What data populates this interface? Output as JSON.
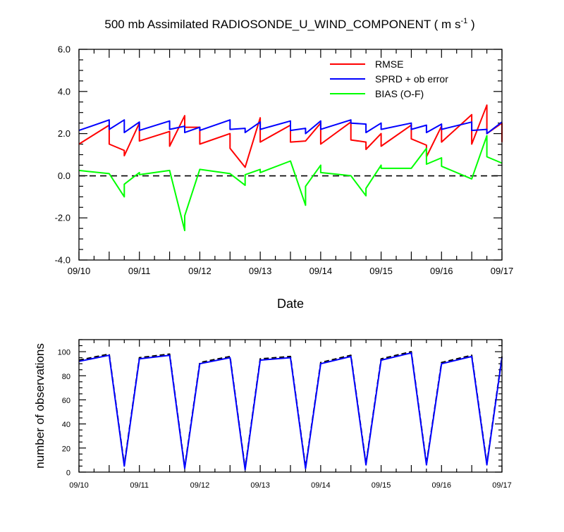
{
  "chart_data": [
    {
      "type": "line",
      "title_main": "500 mb Assimilated RADIOSONDE_U_WIND_COMPONENT ( m s",
      "title_sup": "-1",
      "title_tail": " )",
      "xlabel": "Date",
      "ylabel": "",
      "xlim": [
        0,
        7
      ],
      "ylim": [
        -4,
        6
      ],
      "x_ticks": [
        {
          "x": 0,
          "label": "09/10"
        },
        {
          "x": 1,
          "label": "09/11"
        },
        {
          "x": 2,
          "label": "09/12"
        },
        {
          "x": 3,
          "label": "09/13"
        },
        {
          "x": 4,
          "label": "09/14"
        },
        {
          "x": 5,
          "label": "09/15"
        },
        {
          "x": 6,
          "label": "09/16"
        },
        {
          "x": 7,
          "label": "09/17"
        }
      ],
      "y_ticks": [
        {
          "y": -4,
          "label": "-4.0"
        },
        {
          "y": -2,
          "label": "-2.0"
        },
        {
          "y": 0,
          "label": "0.0"
        },
        {
          "y": 2,
          "label": "2.0"
        },
        {
          "y": 4,
          "label": "4.0"
        },
        {
          "y": 6,
          "label": "6.0"
        }
      ],
      "reference_line": {
        "y": 0,
        "style": "dashed"
      },
      "legend_position": "top-right",
      "series": [
        {
          "name": "RMSE",
          "color": "#ff0000",
          "points": [
            [
              0,
              1.5
            ],
            [
              0.5,
              2.4
            ],
            [
              0.5,
              1.5
            ],
            [
              0.75,
              1.2
            ],
            [
              0.75,
              0.95
            ],
            [
              1,
              2.5
            ],
            [
              1,
              1.65
            ],
            [
              1.5,
              2.1
            ],
            [
              1.5,
              1.4
            ],
            [
              1.75,
              2.85
            ],
            [
              1.75,
              2.3
            ],
            [
              2,
              2.3
            ],
            [
              2,
              1.5
            ],
            [
              2.5,
              2.0
            ],
            [
              2.5,
              1.3
            ],
            [
              2.75,
              0.4
            ],
            [
              3,
              2.75
            ],
            [
              3,
              1.6
            ],
            [
              3.5,
              2.4
            ],
            [
              3.5,
              1.6
            ],
            [
              3.75,
              1.65
            ],
            [
              4,
              2.5
            ],
            [
              4,
              1.5
            ],
            [
              4.5,
              2.55
            ],
            [
              4.5,
              1.7
            ],
            [
              4.75,
              1.6
            ],
            [
              4.75,
              1.25
            ],
            [
              5,
              2.0
            ],
            [
              5,
              1.4
            ],
            [
              5.5,
              2.4
            ],
            [
              5.5,
              1.75
            ],
            [
              5.75,
              1.45
            ],
            [
              5.75,
              0.9
            ],
            [
              6,
              2.35
            ],
            [
              6,
              1.6
            ],
            [
              6.5,
              2.9
            ],
            [
              6.5,
              1.5
            ],
            [
              6.75,
              3.35
            ],
            [
              6.75,
              2.0
            ],
            [
              7,
              2.5
            ],
            [
              7,
              1.6
            ]
          ]
        },
        {
          "name": "SPRD + ob error",
          "color": "#0000ff",
          "points": [
            [
              0,
              2.15
            ],
            [
              0.5,
              2.65
            ],
            [
              0.5,
              2.2
            ],
            [
              0.75,
              2.65
            ],
            [
              0.75,
              2.05
            ],
            [
              1,
              2.55
            ],
            [
              1,
              2.15
            ],
            [
              1.5,
              2.6
            ],
            [
              1.5,
              2.2
            ],
            [
              1.75,
              2.35
            ],
            [
              1.75,
              2.05
            ],
            [
              2,
              2.3
            ],
            [
              2,
              2.15
            ],
            [
              2.5,
              2.65
            ],
            [
              2.5,
              2.2
            ],
            [
              2.75,
              2.25
            ],
            [
              2.75,
              2.05
            ],
            [
              3,
              2.55
            ],
            [
              3,
              2.2
            ],
            [
              3.5,
              2.6
            ],
            [
              3.5,
              2.15
            ],
            [
              3.75,
              2.25
            ],
            [
              3.75,
              2.0
            ],
            [
              4,
              2.6
            ],
            [
              4,
              2.2
            ],
            [
              4.5,
              2.65
            ],
            [
              4.5,
              2.5
            ],
            [
              4.75,
              2.45
            ],
            [
              4.75,
              2.05
            ],
            [
              5,
              2.5
            ],
            [
              5,
              2.2
            ],
            [
              5.5,
              2.5
            ],
            [
              5.5,
              2.2
            ],
            [
              5.75,
              2.4
            ],
            [
              5.75,
              2.05
            ],
            [
              6,
              2.45
            ],
            [
              6,
              2.2
            ],
            [
              6.5,
              2.55
            ],
            [
              6.5,
              2.15
            ],
            [
              6.75,
              2.2
            ],
            [
              6.75,
              2.0
            ],
            [
              7,
              2.55
            ]
          ]
        },
        {
          "name": "BIAS (O-F)",
          "color": "#00ff00",
          "points": [
            [
              0,
              0.25
            ],
            [
              0.5,
              0.1
            ],
            [
              0.75,
              -1.0
            ],
            [
              0.75,
              -0.4
            ],
            [
              1,
              0.15
            ],
            [
              1,
              0.05
            ],
            [
              1.5,
              0.25
            ],
            [
              1.75,
              -2.6
            ],
            [
              1.75,
              -1.9
            ],
            [
              2,
              0.3
            ],
            [
              2.5,
              0.1
            ],
            [
              2.75,
              -0.45
            ],
            [
              2.75,
              0.05
            ],
            [
              3,
              0.3
            ],
            [
              3,
              0.15
            ],
            [
              3.5,
              0.7
            ],
            [
              3.75,
              -1.4
            ],
            [
              3.75,
              -0.5
            ],
            [
              4,
              0.5
            ],
            [
              4,
              0.15
            ],
            [
              4.5,
              0.0
            ],
            [
              4.75,
              -0.95
            ],
            [
              4.75,
              -0.6
            ],
            [
              5,
              0.5
            ],
            [
              5,
              0.35
            ],
            [
              5.5,
              0.35
            ],
            [
              5.75,
              1.3
            ],
            [
              5.75,
              0.55
            ],
            [
              6,
              0.85
            ],
            [
              6,
              0.45
            ],
            [
              6.5,
              -0.15
            ],
            [
              6.75,
              1.9
            ],
            [
              6.75,
              0.9
            ],
            [
              7,
              0.6
            ]
          ]
        }
      ]
    },
    {
      "type": "line",
      "title": "",
      "xlabel": "",
      "ylabel": "number of observations",
      "xlim": [
        0,
        7
      ],
      "ylim": [
        0,
        110
      ],
      "x_ticks": [
        {
          "x": 0,
          "label": "09/10"
        },
        {
          "x": 1,
          "label": "09/11"
        },
        {
          "x": 2,
          "label": "09/12"
        },
        {
          "x": 3,
          "label": "09/13"
        },
        {
          "x": 4,
          "label": "09/14"
        },
        {
          "x": 5,
          "label": "09/15"
        },
        {
          "x": 6,
          "label": "09/16"
        },
        {
          "x": 7,
          "label": "09/17"
        }
      ],
      "y_ticks": [
        {
          "y": 0,
          "label": "0"
        },
        {
          "y": 20,
          "label": "20"
        },
        {
          "y": 40,
          "label": "40"
        },
        {
          "y": 60,
          "label": "60"
        },
        {
          "y": 80,
          "label": "80"
        },
        {
          "y": 100,
          "label": "100"
        }
      ],
      "series": [
        {
          "color": "#000000",
          "dashed": true,
          "points": [
            [
              0,
              93
            ],
            [
              0.5,
              98
            ],
            [
              0.75,
              6
            ],
            [
              1,
              95
            ],
            [
              1.5,
              98
            ],
            [
              1.75,
              4
            ],
            [
              2,
              91
            ],
            [
              2.5,
              96
            ],
            [
              2.75,
              3
            ],
            [
              3,
              94
            ],
            [
              3.5,
              96
            ],
            [
              3.75,
              4
            ],
            [
              4,
              91
            ],
            [
              4.5,
              97
            ],
            [
              4.75,
              7
            ],
            [
              5,
              94
            ],
            [
              5.5,
              100
            ],
            [
              5.75,
              7
            ],
            [
              6,
              91
            ],
            [
              6.5,
              97
            ],
            [
              6.75,
              7
            ],
            [
              7,
              96
            ]
          ]
        },
        {
          "color": "#0000ff",
          "dashed": false,
          "points": [
            [
              0,
              92
            ],
            [
              0.5,
              97
            ],
            [
              0.75,
              5
            ],
            [
              1,
              94
            ],
            [
              1.5,
              97
            ],
            [
              1.75,
              3
            ],
            [
              2,
              90
            ],
            [
              2.5,
              95
            ],
            [
              2.75,
              2
            ],
            [
              3,
              93
            ],
            [
              3.5,
              95
            ],
            [
              3.75,
              3
            ],
            [
              4,
              90
            ],
            [
              4.5,
              96
            ],
            [
              4.75,
              6
            ],
            [
              5,
              93
            ],
            [
              5.5,
              99
            ],
            [
              5.75,
              6
            ],
            [
              6,
              90
            ],
            [
              6.5,
              96
            ],
            [
              6.75,
              6
            ],
            [
              7,
              95
            ]
          ]
        }
      ]
    }
  ]
}
